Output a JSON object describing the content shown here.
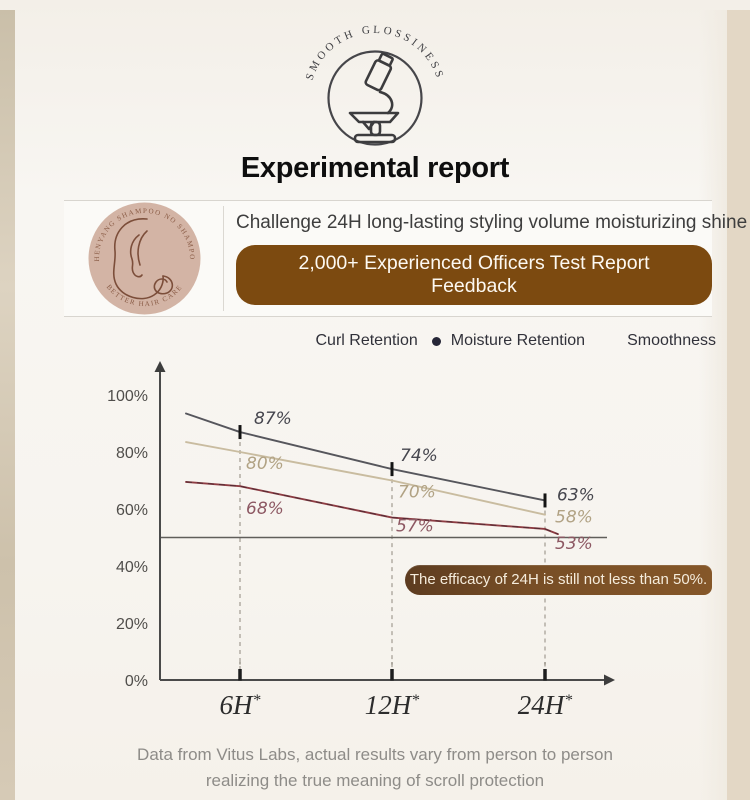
{
  "badge": {
    "arc_text": "SMOOTH GLOSSINESS"
  },
  "title": "Experimental report",
  "report_header": {
    "stamp_ring_text_top": "ZHENYANG SHAMPOO NO SHAMPOO",
    "stamp_ring_text_bottom": "BETTER HAIR CARE",
    "challenge_text": "Challenge 24H long-lasting styling volume moisturizing shine",
    "feedback_button": "2,000+ Experienced Officers Test Report Feedback"
  },
  "legend": {
    "items": [
      {
        "label": "Curl Retention",
        "marker": false
      },
      {
        "label": "Moisture Retention",
        "marker": true,
        "marker_color": "#262637"
      },
      {
        "label": "Smoothness",
        "marker": false
      }
    ]
  },
  "chart_data": {
    "type": "line",
    "categories": [
      "6H",
      "12H",
      "24H"
    ],
    "category_suffix": "*",
    "yticks": [
      "0%",
      "20%",
      "40%",
      "60%",
      "80%",
      "100%"
    ],
    "ylim": [
      0,
      100
    ],
    "reference_line": 50,
    "grid": false,
    "legend_position": "top-right",
    "series": [
      {
        "name": "Curl Retention",
        "color": "#56565c",
        "label_color": "#46464e",
        "values": [
          87,
          74,
          63
        ],
        "lead_in": 93.5
      },
      {
        "name": "Smoothness",
        "color": "#c9bca0",
        "label_color": "#b1a284",
        "values": [
          80,
          70,
          58
        ],
        "lead_in": 83.5
      },
      {
        "name": "Moisture Retention",
        "color": "#8e3c43",
        "label_color": "#8d5863",
        "values": [
          68,
          57,
          53
        ],
        "lead_in": 69.5
      }
    ],
    "annotation": "The efficacy of 24H is still not less than 50%."
  },
  "footnote": {
    "line1": "Data from Vitus Labs, actual results vary from person to person",
    "line2": "realizing the true meaning of scroll protection"
  },
  "colors": {
    "accent_brown": "#7c4a10",
    "callout_brown": "#6f4422",
    "stamp_bg": "#d3b4a5",
    "page_cream": "#f7f4ef",
    "edge_beige": "#e3d7c5"
  }
}
